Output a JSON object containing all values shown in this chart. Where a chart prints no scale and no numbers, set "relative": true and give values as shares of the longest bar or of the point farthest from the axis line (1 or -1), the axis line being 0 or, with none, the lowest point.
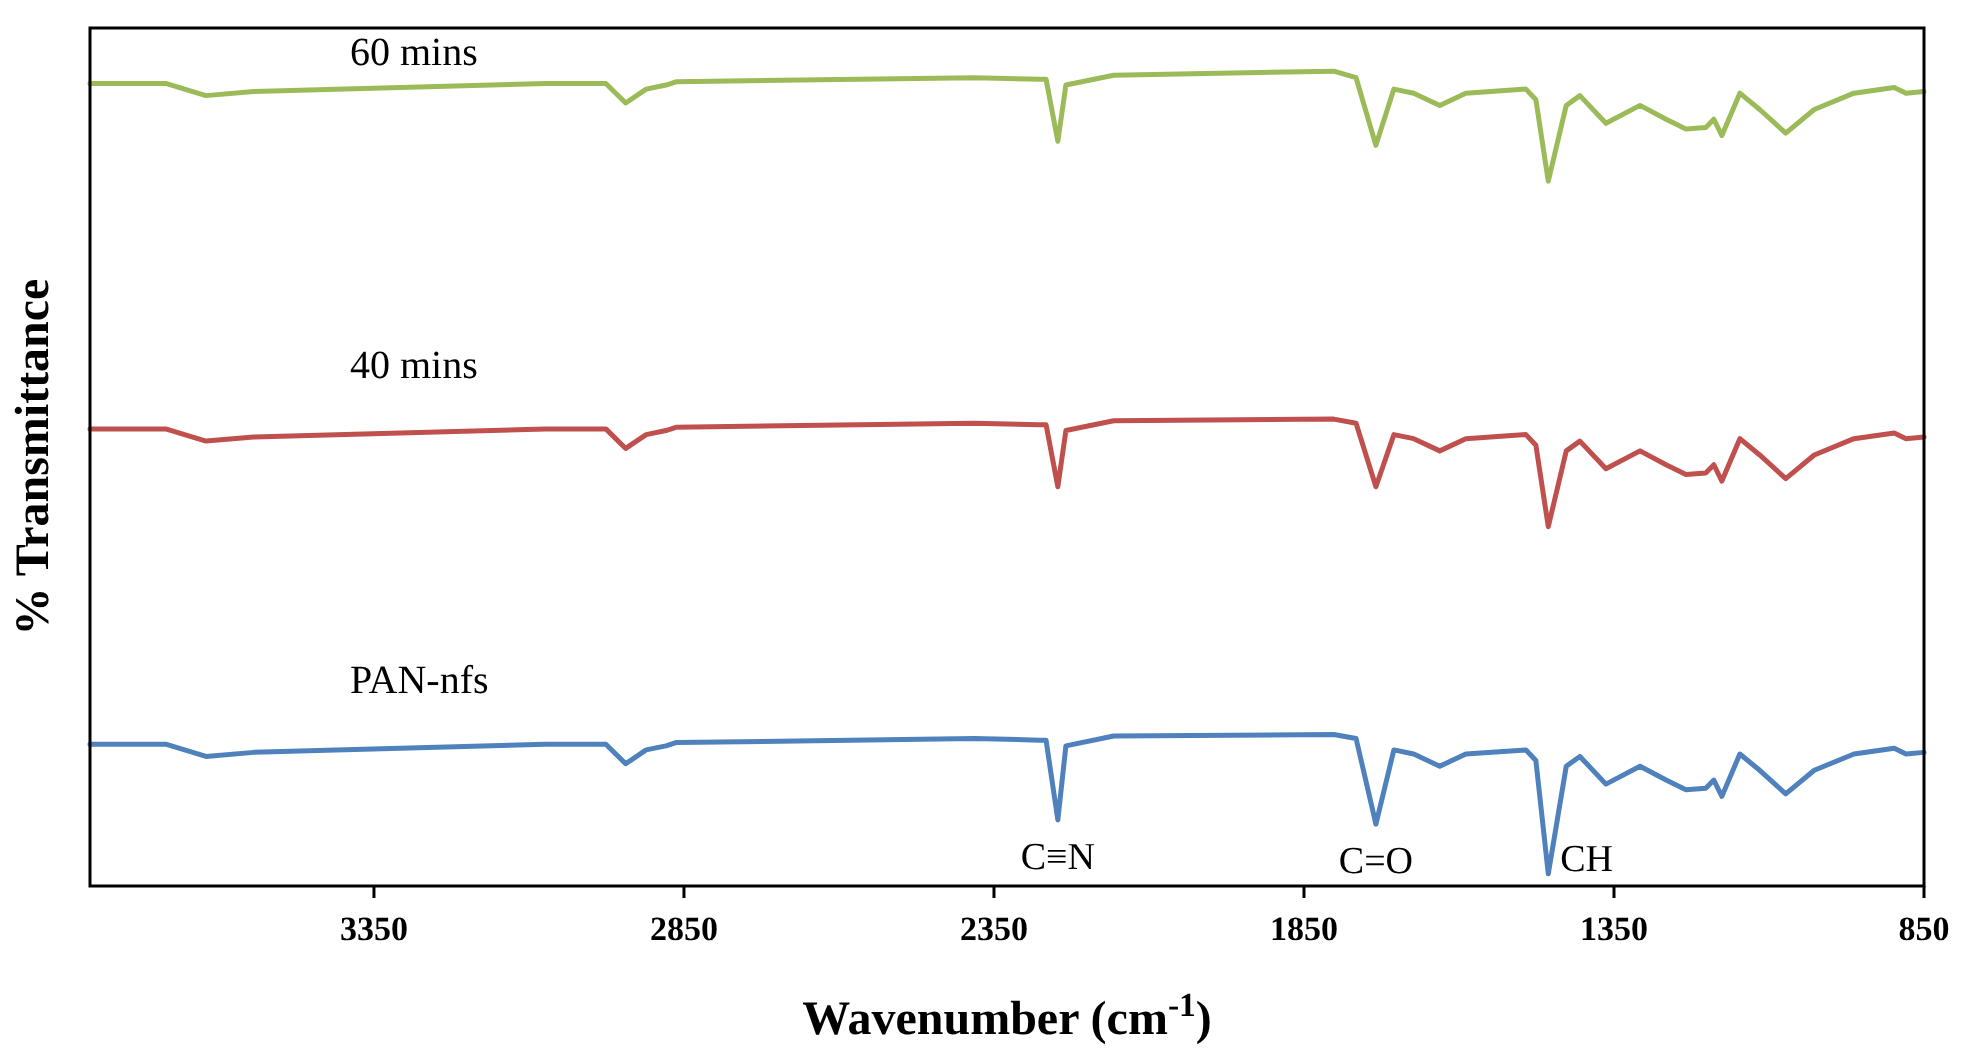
{
  "chart_data": {
    "type": "line",
    "relative": true,
    "xlabel": "Wavenumber (cm$^{-1}$)",
    "ylabel": "% Transmittance",
    "x": [
      3808,
      3686,
      3621,
      3544,
      3073,
      2976,
      2944,
      2911,
      2879,
      2863,
      2382,
      2276,
      2266,
      2247,
      2234,
      2157,
      1802,
      1766,
      1734,
      1705,
      1673,
      1631,
      1589,
      1492,
      1476,
      1456,
      1427,
      1405,
      1363,
      1308,
      1266,
      1234,
      1202,
      1189,
      1176,
      1147,
      1115,
      1073,
      1027,
      963,
      898,
      879,
      850
    ],
    "xlim": [
      3808,
      850
    ],
    "xticks": [
      3350,
      2850,
      2350,
      1850,
      1350,
      850
    ],
    "grid": false,
    "marker": "none",
    "line_style": "solid",
    "series": [
      {
        "name": "60 mins",
        "color": "#9bbb59",
        "values": [
          0.985,
          0.985,
          0.97,
          0.975,
          0.985,
          0.985,
          0.961,
          0.978,
          0.983,
          0.987,
          0.992,
          0.99,
          0.99,
          0.914,
          0.983,
          0.995,
          1.0,
          0.992,
          0.909,
          0.978,
          0.973,
          0.958,
          0.973,
          0.978,
          0.965,
          0.865,
          0.958,
          0.97,
          0.936,
          0.958,
          0.941,
          0.929,
          0.931,
          0.941,
          0.921,
          0.973,
          0.953,
          0.924,
          0.953,
          0.973,
          0.98,
          0.973,
          0.975
        ]
      },
      {
        "name": "40 mins",
        "color": "#c0504d",
        "values": [
          0.561,
          0.561,
          0.546,
          0.551,
          0.561,
          0.561,
          0.537,
          0.554,
          0.559,
          0.563,
          0.568,
          0.566,
          0.566,
          0.49,
          0.559,
          0.571,
          0.573,
          0.568,
          0.49,
          0.554,
          0.549,
          0.534,
          0.549,
          0.554,
          0.541,
          0.441,
          0.534,
          0.546,
          0.512,
          0.534,
          0.517,
          0.505,
          0.507,
          0.517,
          0.497,
          0.549,
          0.529,
          0.5,
          0.529,
          0.549,
          0.556,
          0.549,
          0.551
        ]
      },
      {
        "name": "PAN-nfs",
        "color": "#4f81bd",
        "values": [
          0.174,
          0.174,
          0.159,
          0.164,
          0.174,
          0.174,
          0.15,
          0.167,
          0.172,
          0.176,
          0.181,
          0.179,
          0.179,
          0.081,
          0.172,
          0.184,
          0.186,
          0.181,
          0.076,
          0.167,
          0.162,
          0.147,
          0.162,
          0.167,
          0.154,
          0.015,
          0.147,
          0.159,
          0.125,
          0.147,
          0.13,
          0.118,
          0.12,
          0.13,
          0.11,
          0.162,
          0.142,
          0.113,
          0.142,
          0.162,
          0.169,
          0.162,
          0.164
        ]
      }
    ],
    "annotations": [
      {
        "text": "C≡N",
        "x": 2247,
        "y": 0.081
      },
      {
        "text": "C=O",
        "x": 1734,
        "y": 0.076
      },
      {
        "text": "CH",
        "x": 1456,
        "y": 0.015
      }
    ]
  }
}
